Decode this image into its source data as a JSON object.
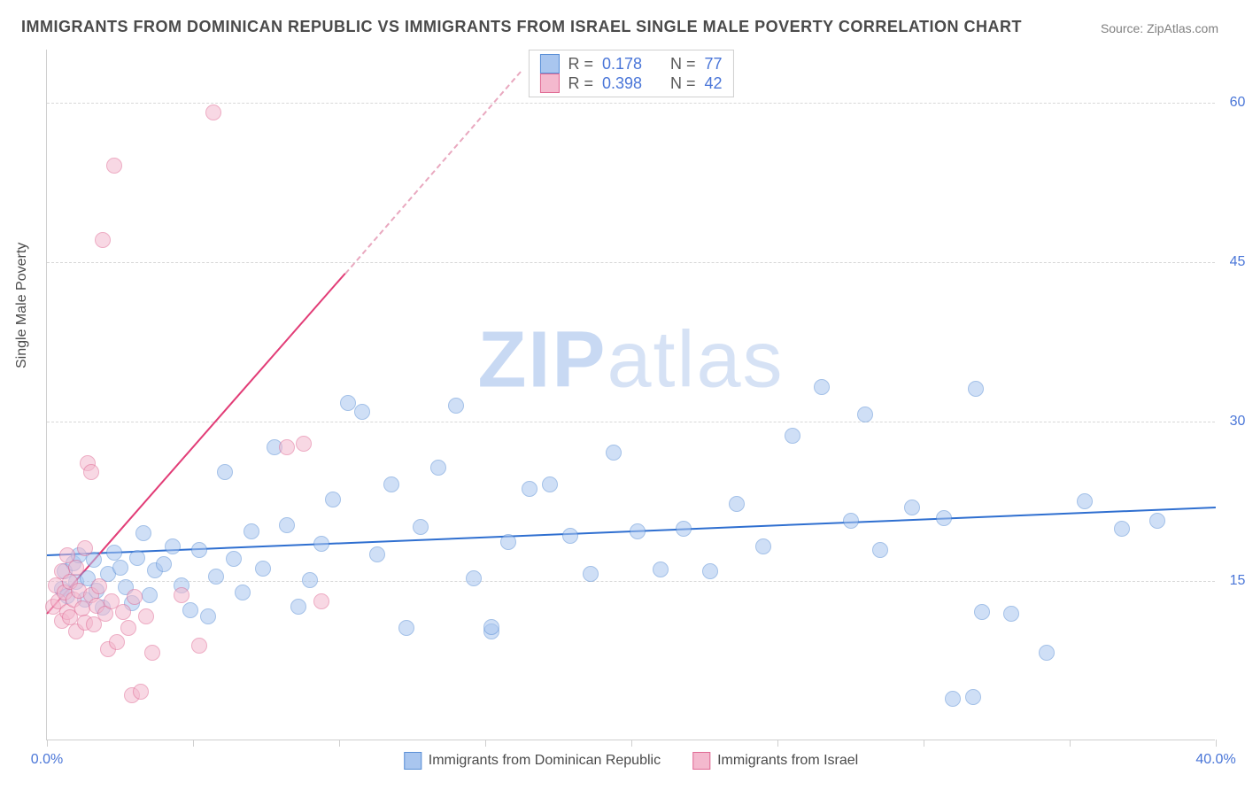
{
  "title": "IMMIGRANTS FROM DOMINICAN REPUBLIC VS IMMIGRANTS FROM ISRAEL SINGLE MALE POVERTY CORRELATION CHART",
  "source": "Source: ZipAtlas.com",
  "ylabel": "Single Male Poverty",
  "watermark_bold": "ZIP",
  "watermark_light": "atlas",
  "chart": {
    "type": "scatter",
    "xlim": [
      0,
      40
    ],
    "ylim": [
      0,
      65
    ],
    "x_ticks": [
      0,
      5,
      10,
      15,
      20,
      25,
      30,
      35,
      40
    ],
    "x_tick_labels": {
      "0": "0.0%",
      "40": "40.0%"
    },
    "y_gridlines": [
      15,
      30,
      45,
      60
    ],
    "y_tick_labels": {
      "15": "15.0%",
      "30": "30.0%",
      "45": "45.0%",
      "60": "60.0%"
    },
    "background_color": "#ffffff",
    "grid_color": "#d8d8d8",
    "axis_color": "#cfcfcf",
    "tick_label_color": "#4a76d8",
    "title_color": "#4a4a4a",
    "title_fontsize": 18,
    "label_fontsize": 16,
    "point_radius": 9,
    "point_opacity": 0.55,
    "series": [
      {
        "name": "Immigrants from Dominican Republic",
        "fill": "#a9c6ef",
        "stroke": "#5a8fd6",
        "R": "0.178",
        "N": "77",
        "regression": {
          "x1": 0,
          "y1": 17.5,
          "x2": 40,
          "y2": 22.0,
          "color": "#2f6fd0",
          "width": 2
        },
        "points": [
          [
            0.5,
            14.2
          ],
          [
            0.6,
            15.8
          ],
          [
            0.7,
            13.5
          ],
          [
            0.9,
            16.6
          ],
          [
            1.0,
            14.8
          ],
          [
            1.1,
            17.3
          ],
          [
            1.3,
            13.2
          ],
          [
            1.4,
            15.2
          ],
          [
            1.6,
            16.9
          ],
          [
            1.7,
            14.0
          ],
          [
            1.9,
            12.4
          ],
          [
            2.1,
            15.6
          ],
          [
            2.3,
            17.6
          ],
          [
            2.5,
            16.2
          ],
          [
            2.7,
            14.3
          ],
          [
            2.9,
            12.8
          ],
          [
            3.1,
            17.1
          ],
          [
            3.3,
            19.4
          ],
          [
            3.5,
            13.6
          ],
          [
            3.7,
            15.9
          ],
          [
            4.0,
            16.5
          ],
          [
            4.3,
            18.2
          ],
          [
            4.6,
            14.5
          ],
          [
            4.9,
            12.2
          ],
          [
            5.2,
            17.8
          ],
          [
            5.5,
            11.6
          ],
          [
            5.8,
            15.3
          ],
          [
            6.1,
            25.2
          ],
          [
            6.4,
            17.0
          ],
          [
            6.7,
            13.8
          ],
          [
            7.0,
            19.6
          ],
          [
            7.4,
            16.1
          ],
          [
            7.8,
            27.5
          ],
          [
            8.2,
            20.2
          ],
          [
            8.6,
            12.5
          ],
          [
            9.0,
            15.0
          ],
          [
            9.4,
            18.4
          ],
          [
            9.8,
            22.6
          ],
          [
            10.3,
            31.7
          ],
          [
            10.8,
            30.8
          ],
          [
            11.3,
            17.4
          ],
          [
            11.8,
            24.0
          ],
          [
            12.3,
            10.5
          ],
          [
            12.8,
            20.0
          ],
          [
            13.4,
            25.6
          ],
          [
            14.0,
            31.4
          ],
          [
            14.6,
            15.2
          ],
          [
            15.2,
            10.2
          ],
          [
            15.2,
            10.6
          ],
          [
            15.8,
            18.6
          ],
          [
            16.5,
            23.6
          ],
          [
            17.2,
            24.0
          ],
          [
            17.9,
            19.2
          ],
          [
            18.6,
            15.6
          ],
          [
            19.4,
            27.0
          ],
          [
            20.2,
            19.6
          ],
          [
            21.0,
            16.0
          ],
          [
            21.8,
            19.8
          ],
          [
            22.7,
            15.8
          ],
          [
            23.6,
            22.2
          ],
          [
            24.5,
            18.2
          ],
          [
            25.5,
            28.6
          ],
          [
            26.5,
            33.2
          ],
          [
            27.5,
            20.6
          ],
          [
            28.0,
            30.6
          ],
          [
            28.5,
            17.8
          ],
          [
            29.6,
            21.8
          ],
          [
            30.7,
            20.8
          ],
          [
            31.0,
            3.8
          ],
          [
            31.7,
            4.0
          ],
          [
            31.8,
            33.0
          ],
          [
            32.0,
            12.0
          ],
          [
            33.0,
            11.8
          ],
          [
            34.2,
            8.2
          ],
          [
            35.5,
            22.4
          ],
          [
            36.8,
            19.8
          ],
          [
            38.0,
            20.6
          ]
        ]
      },
      {
        "name": "Immigrants from Israel",
        "fill": "#f4b9ce",
        "stroke": "#e06a94",
        "R": "0.398",
        "N": "42",
        "regression": {
          "x1": 0,
          "y1": 12.0,
          "x2": 10.2,
          "y2": 44.0,
          "color": "#e23d77",
          "width": 2
        },
        "regression_dash": {
          "x1": 10.2,
          "y1": 44.0,
          "x2": 16.2,
          "y2": 63.0,
          "color": "#e9a8bf"
        },
        "points": [
          [
            0.2,
            12.5
          ],
          [
            0.3,
            14.5
          ],
          [
            0.4,
            13.0
          ],
          [
            0.5,
            11.2
          ],
          [
            0.5,
            15.8
          ],
          [
            0.6,
            13.8
          ],
          [
            0.7,
            12.0
          ],
          [
            0.7,
            17.3
          ],
          [
            0.8,
            14.8
          ],
          [
            0.8,
            11.5
          ],
          [
            0.9,
            13.2
          ],
          [
            1.0,
            10.2
          ],
          [
            1.0,
            16.2
          ],
          [
            1.1,
            14.0
          ],
          [
            1.2,
            12.3
          ],
          [
            1.3,
            11.0
          ],
          [
            1.3,
            18.0
          ],
          [
            1.4,
            26.0
          ],
          [
            1.5,
            13.6
          ],
          [
            1.5,
            25.2
          ],
          [
            1.6,
            10.8
          ],
          [
            1.7,
            12.6
          ],
          [
            1.8,
            14.4
          ],
          [
            1.9,
            47.0
          ],
          [
            2.0,
            11.8
          ],
          [
            2.1,
            8.5
          ],
          [
            2.2,
            13.0
          ],
          [
            2.3,
            54.0
          ],
          [
            2.4,
            9.2
          ],
          [
            2.6,
            12.0
          ],
          [
            2.8,
            10.5
          ],
          [
            2.9,
            4.2
          ],
          [
            3.0,
            13.4
          ],
          [
            3.2,
            4.5
          ],
          [
            3.4,
            11.6
          ],
          [
            3.6,
            8.2
          ],
          [
            4.6,
            13.6
          ],
          [
            5.2,
            8.8
          ],
          [
            5.7,
            59.0
          ],
          [
            8.2,
            27.5
          ],
          [
            8.8,
            27.8
          ],
          [
            9.4,
            13.0
          ]
        ]
      }
    ]
  },
  "legend_stats_labels": {
    "R": "R  =",
    "N": "N  ="
  }
}
